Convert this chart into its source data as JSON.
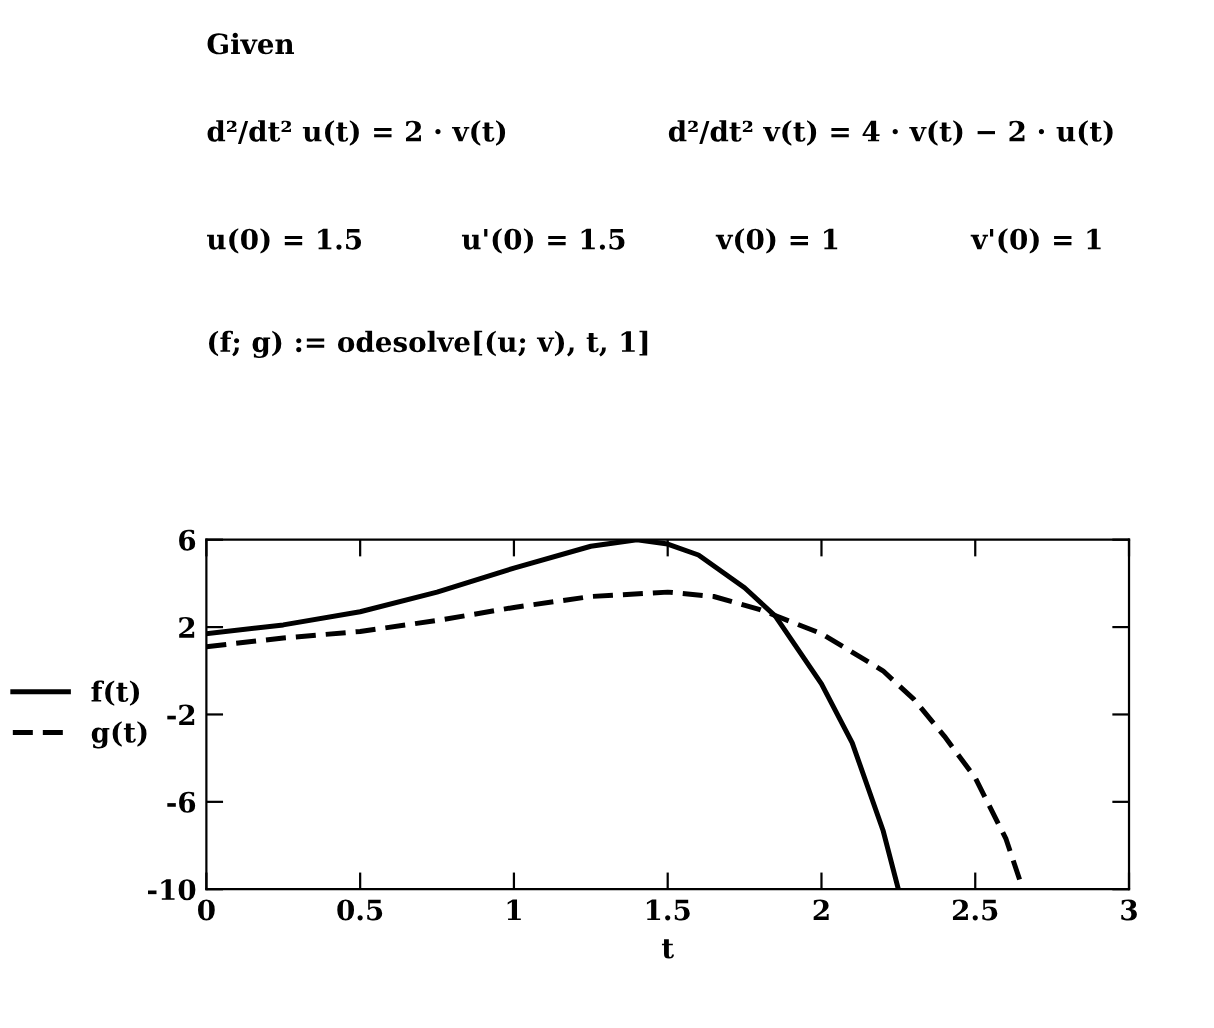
{
  "chart_data": {
    "type": "line",
    "xlabel": "t",
    "annotations": [
      "Given",
      "d²/dt² u(t) = 2 · v(t)",
      "d²/dt² v(t) = 4 · v(t) − 2 · u(t)",
      "u(0) = 1.5",
      "u'(0) = 1.5",
      "v(0) = 1",
      "v'(0) = 1",
      "(f; g) := odesolve[(u; v), t, 1]"
    ],
    "series": [
      {
        "name": "f(t)",
        "color": "#000000",
        "line_style": "solid",
        "x": [
          0,
          0.25,
          0.5,
          0.75,
          1,
          1.25,
          1.4,
          1.5,
          1.6,
          1.75,
          1.85,
          2,
          2.1,
          2.2,
          2.25
        ],
        "values": [
          1.7,
          2.1,
          2.7,
          3.6,
          4.7,
          5.7,
          6,
          5.8,
          5.3,
          3.8,
          2.5,
          -0.6,
          -3.3,
          -7.3,
          -10
        ]
      },
      {
        "name": "g(t)",
        "color": "#000000",
        "line_style": "dashed",
        "x": [
          0,
          0.25,
          0.5,
          0.75,
          1,
          1.25,
          1.5,
          1.65,
          1.8,
          2,
          2.2,
          2.3,
          2.4,
          2.5,
          2.6,
          2.65
        ],
        "values": [
          1.1,
          1.5,
          1.8,
          2.3,
          2.9,
          3.4,
          3.6,
          3.4,
          2.8,
          1.7,
          0,
          -1.3,
          -3,
          -4.9,
          -7.7,
          -9.8
        ]
      }
    ],
    "xlim": [
      0,
      3
    ],
    "ylim": [
      -10,
      6
    ],
    "xticks": [
      0,
      0.5,
      1,
      1.5,
      2,
      2.5,
      3
    ],
    "yticks": [
      -10,
      -6,
      -2,
      2,
      6
    ],
    "grid": false,
    "legend": "left"
  }
}
